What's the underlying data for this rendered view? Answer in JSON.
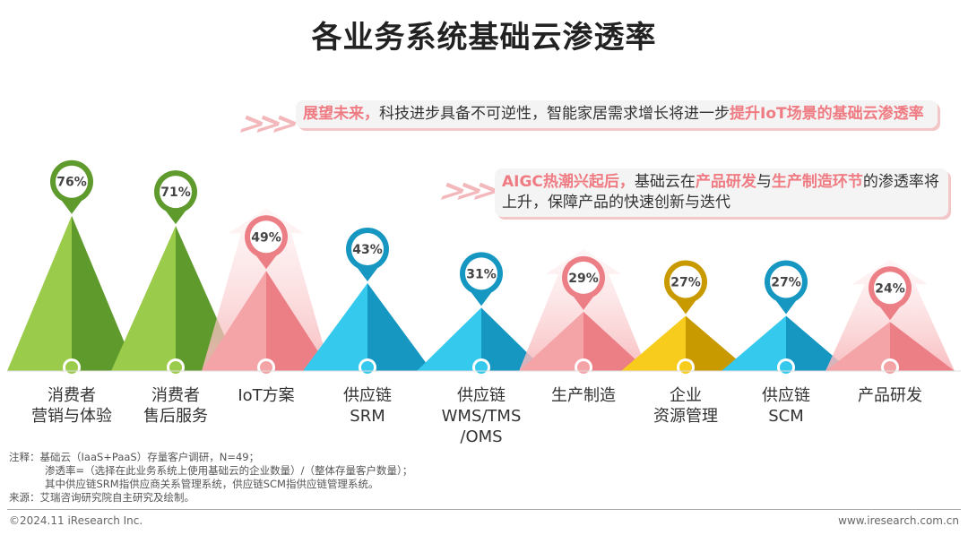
{
  "title": "各业务系统基础云渗透率",
  "callouts": [
    {
      "parts": [
        {
          "t": "展望未来，",
          "hl": true
        },
        {
          "t": "科技进步具备不可逆性，智能家居需求增长将进一步",
          "hl": false
        },
        {
          "t": "提升IoT场景的基础云渗透率",
          "hl": true
        }
      ]
    },
    {
      "parts": [
        {
          "t": "AIGC热潮兴起后，",
          "hl": true
        },
        {
          "t": "基础云在",
          "hl": false
        },
        {
          "t": "产品研发",
          "hl": true
        },
        {
          "t": "与",
          "hl": false
        },
        {
          "t": "生产制造环节",
          "hl": true
        },
        {
          "t": "的渗透率将上升，保障产品的快速创新与迭代",
          "hl": false
        }
      ]
    }
  ],
  "chart_data": {
    "type": "bar",
    "categories": [
      "消费者\n营销与体验",
      "消费者\n售后服务",
      "IoT方案",
      "供应链\nSRM",
      "供应链\nWMS/TMS\n/OMS",
      "生产制造",
      "企业\n资源管理",
      "供应链\nSCM",
      "产品研发"
    ],
    "values": [
      76,
      71,
      49,
      43,
      31,
      29,
      27,
      27,
      24
    ],
    "unit": "%",
    "colors": [
      "green",
      "green",
      "pink",
      "blue",
      "blue",
      "pink",
      "yellow",
      "blue",
      "pink"
    ],
    "palette": {
      "green": [
        "#9bcb4a",
        "#5e9a2c"
      ],
      "pink": [
        "#f4a3a7",
        "#ec7f86"
      ],
      "blue": [
        "#35c9ee",
        "#1597c2"
      ],
      "yellow": [
        "#f7cc1c",
        "#c99a00"
      ]
    }
  },
  "notes": [
    "注释：基础云（IaaS+PaaS）存量客户调研，N=49；",
    "渗透率=（选择在此业务系统上使用基础云的企业数量）/（整体存量客户数量）；",
    "其中供应链SRM指供应商关系管理系统，供应链SCM指供应链管理系统。",
    "来源：艾瑞咨询研究院自主研究及绘制。"
  ],
  "footer": {
    "left": "©2024.11 iResearch Inc.",
    "right": "www.iresearch.com.cn"
  }
}
